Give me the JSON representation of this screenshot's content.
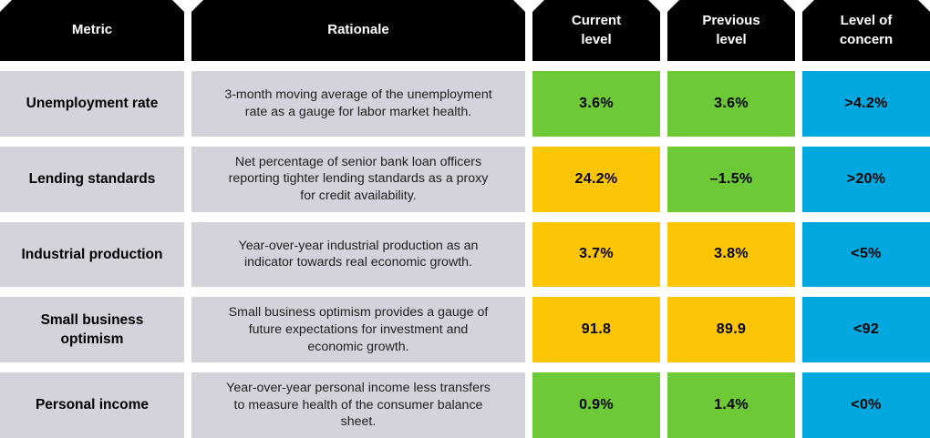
{
  "colors": {
    "header_bg": "#000000",
    "header_text": "#ffffff",
    "label_bg": "#d4d3dc",
    "value_text": "#000000",
    "green": "#6ec937",
    "yellow": "#fcc607",
    "blue": "#00a8df",
    "page_bg": "#ffffff"
  },
  "chart_data": {
    "type": "table",
    "columns": [
      "Metric",
      "Rationale",
      "Current level",
      "Previous level",
      "Level of concern"
    ],
    "rows": [
      {
        "metric": "Unemployment rate",
        "rationale": "3-month moving average of the unemployment rate as a gauge for labor market health.",
        "current": {
          "text": "3.6%",
          "status": "green"
        },
        "previous": {
          "text": "3.6%",
          "status": "green"
        },
        "concern": {
          "text": ">4.2%",
          "status": "blue"
        }
      },
      {
        "metric": "Lending standards",
        "rationale": "Net percentage of senior bank loan officers reporting tighter lending standards as a proxy for credit availability.",
        "current": {
          "text": "24.2%",
          "status": "yellow"
        },
        "previous": {
          "text": "–1.5%",
          "status": "green"
        },
        "concern": {
          "text": ">20%",
          "status": "blue"
        }
      },
      {
        "metric": "Industrial production",
        "rationale": "Year-over-year industrial production as an indicator towards real economic growth.",
        "current": {
          "text": "3.7%",
          "status": "yellow"
        },
        "previous": {
          "text": "3.8%",
          "status": "yellow"
        },
        "concern": {
          "text": "<5%",
          "status": "blue"
        }
      },
      {
        "metric": "Small business optimism",
        "rationale": "Small business optimism provides a gauge of future expectations for investment and economic growth.",
        "current": {
          "text": "91.8",
          "status": "yellow"
        },
        "previous": {
          "text": "89.9",
          "status": "yellow"
        },
        "concern": {
          "text": "<92",
          "status": "blue"
        }
      },
      {
        "metric": "Personal income",
        "rationale": "Year-over-year personal income less transfers to measure health of the consumer balance sheet.",
        "current": {
          "text": "0.9%",
          "status": "green"
        },
        "previous": {
          "text": "1.4%",
          "status": "green"
        },
        "concern": {
          "text": "<0%",
          "status": "blue"
        }
      }
    ]
  }
}
